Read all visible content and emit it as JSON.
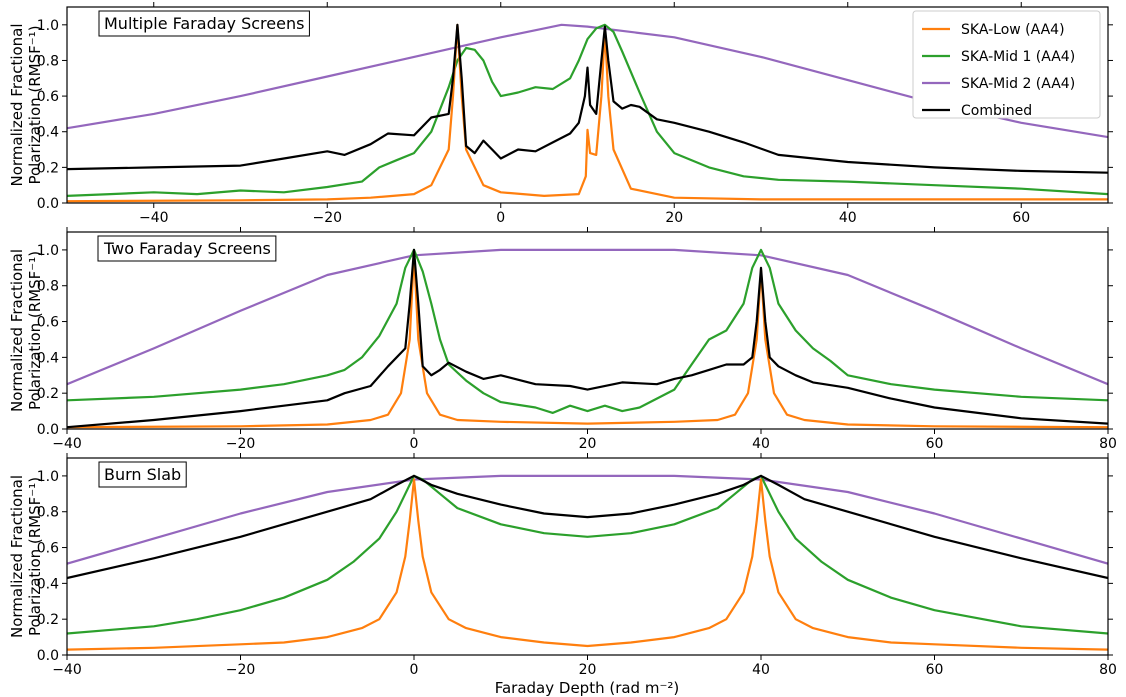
{
  "figure": {
    "ylabel_line1": "Normalized Fractional",
    "ylabel_line2": "Polarization (RMSF⁻¹)",
    "xlabel": "Faraday Depth (rad m⁻²)"
  },
  "legend": [
    {
      "label": "SKA-Low (AA4)",
      "color": "#ff7f0e"
    },
    {
      "label": "SKA-Mid 1 (AA4)",
      "color": "#2ca02c"
    },
    {
      "label": "SKA-Mid 2 (AA4)",
      "color": "#9467bd"
    },
    {
      "label": "Combined",
      "color": "#000000"
    }
  ],
  "chart_data": [
    {
      "type": "line",
      "title": "Multiple Faraday Screens",
      "xlim": [
        -50,
        70
      ],
      "ylim": [
        0,
        1.1
      ],
      "xticks": [
        -40,
        -20,
        0,
        20,
        40,
        60
      ],
      "yticks": [
        0.0,
        0.2,
        0.4,
        0.6,
        0.8,
        1.0
      ],
      "ytick_labels": [
        "0.0",
        "0.2",
        "0.4",
        "0.6",
        "0.8",
        "1.0"
      ],
      "series": [
        {
          "name": "SKA-Mid 2 (AA4)",
          "color": "#9467bd",
          "x": [
            -50,
            -40,
            -30,
            -20,
            -10,
            0,
            5,
            7,
            10,
            20,
            30,
            40,
            50,
            60,
            70
          ],
          "y": [
            0.42,
            0.5,
            0.6,
            0.71,
            0.82,
            0.93,
            0.98,
            1.0,
            0.99,
            0.93,
            0.82,
            0.69,
            0.56,
            0.45,
            0.37
          ]
        },
        {
          "name": "SKA-Mid 1 (AA4)",
          "color": "#2ca02c",
          "x": [
            -50,
            -45,
            -40,
            -35,
            -30,
            -25,
            -20,
            -16,
            -14,
            -12,
            -10,
            -8,
            -6,
            -5,
            -4,
            -3,
            -2,
            -1,
            0,
            2,
            4,
            6,
            8,
            9,
            10,
            11,
            12,
            13,
            14,
            16,
            18,
            20,
            24,
            28,
            32,
            40,
            50,
            60,
            70
          ],
          "y": [
            0.04,
            0.05,
            0.06,
            0.05,
            0.07,
            0.06,
            0.09,
            0.12,
            0.2,
            0.24,
            0.28,
            0.4,
            0.65,
            0.8,
            0.87,
            0.86,
            0.8,
            0.68,
            0.6,
            0.62,
            0.65,
            0.64,
            0.7,
            0.8,
            0.92,
            0.98,
            1.0,
            0.96,
            0.85,
            0.62,
            0.4,
            0.28,
            0.2,
            0.15,
            0.13,
            0.12,
            0.1,
            0.08,
            0.05
          ]
        },
        {
          "name": "SKA-Low (AA4)",
          "color": "#ff7f0e",
          "x": [
            -50,
            -30,
            -20,
            -15,
            -10,
            -8,
            -6,
            -5.5,
            -5,
            -4.5,
            -4,
            -2,
            0,
            5,
            9,
            9.8,
            10,
            10.3,
            11,
            11.6,
            12,
            12.4,
            13,
            15,
            20,
            30,
            50,
            70
          ],
          "y": [
            0.01,
            0.015,
            0.02,
            0.03,
            0.05,
            0.1,
            0.3,
            0.6,
            1.0,
            0.6,
            0.3,
            0.1,
            0.06,
            0.04,
            0.05,
            0.15,
            0.41,
            0.28,
            0.27,
            0.6,
            0.97,
            0.6,
            0.3,
            0.08,
            0.03,
            0.02,
            0.02,
            0.02
          ]
        },
        {
          "name": "Combined",
          "color": "#000000",
          "x": [
            -50,
            -40,
            -30,
            -25,
            -20,
            -18,
            -15,
            -13,
            -10,
            -8,
            -6,
            -5.5,
            -5,
            -4.5,
            -4,
            -3,
            -2,
            -1,
            0,
            2,
            4,
            6,
            8,
            9,
            9.7,
            10,
            10.3,
            11,
            11.6,
            12,
            12.4,
            13,
            14,
            15,
            16,
            18,
            20,
            24,
            28,
            32,
            40,
            50,
            60,
            70
          ],
          "y": [
            0.19,
            0.2,
            0.21,
            0.25,
            0.29,
            0.27,
            0.33,
            0.39,
            0.38,
            0.48,
            0.5,
            0.7,
            1.0,
            0.7,
            0.32,
            0.28,
            0.35,
            0.3,
            0.25,
            0.3,
            0.29,
            0.34,
            0.39,
            0.45,
            0.6,
            0.76,
            0.55,
            0.5,
            0.8,
            0.99,
            0.8,
            0.57,
            0.53,
            0.55,
            0.54,
            0.47,
            0.45,
            0.4,
            0.34,
            0.27,
            0.23,
            0.2,
            0.18,
            0.17
          ]
        }
      ]
    },
    {
      "type": "line",
      "title": "Two Faraday Screens",
      "xlim": [
        -40,
        80
      ],
      "ylim": [
        0,
        1.1
      ],
      "xticks": [
        -40,
        -20,
        0,
        20,
        40,
        60,
        80
      ],
      "yticks": [
        0.0,
        0.2,
        0.4,
        0.6,
        0.8,
        1.0
      ],
      "ytick_labels": [
        "0.0",
        "0.2",
        "0.4",
        "0.6",
        "0.8",
        "1.0"
      ],
      "series": [
        {
          "name": "SKA-Mid 2 (AA4)",
          "color": "#9467bd",
          "x": [
            -40,
            -30,
            -20,
            -10,
            0,
            10,
            20,
            30,
            40,
            50,
            60,
            70,
            80
          ],
          "y": [
            0.25,
            0.45,
            0.66,
            0.86,
            0.97,
            1.0,
            1.0,
            1.0,
            0.97,
            0.86,
            0.66,
            0.45,
            0.25
          ]
        },
        {
          "name": "SKA-Mid 1 (AA4)",
          "color": "#2ca02c",
          "x": [
            -40,
            -30,
            -20,
            -15,
            -10,
            -8,
            -6,
            -4,
            -2,
            -1,
            0,
            1,
            2,
            3,
            4,
            6,
            8,
            10,
            14,
            16,
            18,
            20,
            22,
            24,
            26,
            30,
            32,
            34,
            36,
            38,
            39,
            40,
            41,
            42,
            44,
            46,
            48,
            50,
            55,
            60,
            70,
            80
          ],
          "y": [
            0.16,
            0.18,
            0.22,
            0.25,
            0.3,
            0.33,
            0.4,
            0.52,
            0.7,
            0.9,
            1.0,
            0.88,
            0.7,
            0.5,
            0.36,
            0.27,
            0.2,
            0.15,
            0.12,
            0.09,
            0.13,
            0.1,
            0.13,
            0.1,
            0.12,
            0.22,
            0.36,
            0.5,
            0.55,
            0.7,
            0.9,
            1.0,
            0.9,
            0.7,
            0.55,
            0.45,
            0.38,
            0.3,
            0.25,
            0.22,
            0.18,
            0.16
          ]
        },
        {
          "name": "SKA-Low (AA4)",
          "color": "#ff7f0e",
          "x": [
            -40,
            -20,
            -10,
            -5,
            -3,
            -1.5,
            -0.5,
            0,
            0.5,
            1.5,
            3,
            5,
            10,
            20,
            30,
            35,
            37,
            38.5,
            39.5,
            40,
            40.5,
            41.5,
            43,
            45,
            50,
            60,
            80
          ],
          "y": [
            0.01,
            0.015,
            0.025,
            0.05,
            0.08,
            0.2,
            0.5,
            0.98,
            0.5,
            0.2,
            0.08,
            0.05,
            0.04,
            0.03,
            0.04,
            0.05,
            0.08,
            0.2,
            0.5,
            0.89,
            0.5,
            0.2,
            0.08,
            0.05,
            0.025,
            0.015,
            0.01
          ]
        },
        {
          "name": "Combined",
          "color": "#000000",
          "x": [
            -40,
            -30,
            -20,
            -15,
            -10,
            -8,
            -5,
            -3,
            -1,
            -0.5,
            0,
            0.5,
            1,
            2,
            3,
            4,
            6,
            8,
            10,
            14,
            18,
            20,
            24,
            28,
            30,
            32,
            34,
            36,
            38,
            39,
            39.5,
            40,
            40.5,
            41,
            42,
            44,
            46,
            50,
            55,
            60,
            70,
            80
          ],
          "y": [
            0.01,
            0.05,
            0.1,
            0.13,
            0.16,
            0.2,
            0.24,
            0.35,
            0.45,
            0.7,
            1.0,
            0.7,
            0.35,
            0.3,
            0.33,
            0.37,
            0.32,
            0.28,
            0.3,
            0.25,
            0.24,
            0.22,
            0.26,
            0.25,
            0.28,
            0.3,
            0.33,
            0.36,
            0.36,
            0.4,
            0.6,
            0.9,
            0.6,
            0.4,
            0.35,
            0.3,
            0.26,
            0.23,
            0.17,
            0.12,
            0.06,
            0.03
          ]
        }
      ]
    },
    {
      "type": "line",
      "title": "Burn Slab",
      "xlim": [
        -40,
        80
      ],
      "ylim": [
        0,
        1.1
      ],
      "xticks": [
        -40,
        -20,
        0,
        20,
        40,
        60,
        80
      ],
      "yticks": [
        0.0,
        0.2,
        0.4,
        0.6,
        0.8,
        1.0
      ],
      "ytick_labels": [
        "0.0",
        "0.2",
        "0.4",
        "0.6",
        "0.8",
        "1.0"
      ],
      "series": [
        {
          "name": "SKA-Mid 2 (AA4)",
          "color": "#9467bd",
          "x": [
            -40,
            -30,
            -20,
            -10,
            0,
            10,
            20,
            30,
            40,
            50,
            60,
            70,
            80
          ],
          "y": [
            0.51,
            0.65,
            0.79,
            0.91,
            0.98,
            1.0,
            1.0,
            1.0,
            0.98,
            0.91,
            0.79,
            0.65,
            0.51
          ]
        },
        {
          "name": "SKA-Mid 1 (AA4)",
          "color": "#2ca02c",
          "x": [
            -40,
            -30,
            -25,
            -20,
            -15,
            -10,
            -7,
            -4,
            -2,
            -1,
            0,
            1,
            3,
            5,
            10,
            15,
            20,
            25,
            30,
            35,
            37,
            39,
            40,
            41,
            42,
            44,
            47,
            50,
            55,
            60,
            70,
            80
          ],
          "y": [
            0.12,
            0.16,
            0.2,
            0.25,
            0.32,
            0.42,
            0.52,
            0.65,
            0.8,
            0.9,
            1.0,
            0.98,
            0.9,
            0.82,
            0.73,
            0.68,
            0.66,
            0.68,
            0.73,
            0.82,
            0.9,
            0.98,
            1.0,
            0.9,
            0.8,
            0.65,
            0.52,
            0.42,
            0.32,
            0.25,
            0.16,
            0.12
          ]
        },
        {
          "name": "Combined",
          "color": "#000000",
          "x": [
            -40,
            -30,
            -20,
            -10,
            -5,
            -2,
            0,
            2,
            5,
            10,
            15,
            20,
            25,
            30,
            35,
            38,
            40,
            42,
            45,
            50,
            60,
            70,
            80
          ],
          "y": [
            0.43,
            0.54,
            0.66,
            0.8,
            0.87,
            0.95,
            1.0,
            0.95,
            0.9,
            0.84,
            0.79,
            0.77,
            0.79,
            0.84,
            0.9,
            0.95,
            1.0,
            0.95,
            0.87,
            0.8,
            0.66,
            0.54,
            0.43
          ]
        },
        {
          "name": "SKA-Low (AA4)",
          "color": "#ff7f0e",
          "x": [
            -40,
            -30,
            -20,
            -15,
            -10,
            -6,
            -4,
            -2,
            -1,
            -0.5,
            0,
            0.5,
            1,
            2,
            4,
            6,
            10,
            15,
            20,
            25,
            30,
            34,
            36,
            38,
            39,
            39.5,
            40,
            40.5,
            41,
            42,
            44,
            46,
            50,
            55,
            60,
            70,
            80
          ],
          "y": [
            0.03,
            0.04,
            0.06,
            0.07,
            0.1,
            0.15,
            0.2,
            0.35,
            0.55,
            0.75,
            0.98,
            0.75,
            0.55,
            0.35,
            0.2,
            0.15,
            0.1,
            0.07,
            0.05,
            0.07,
            0.1,
            0.15,
            0.2,
            0.35,
            0.55,
            0.75,
            0.98,
            0.75,
            0.55,
            0.35,
            0.2,
            0.15,
            0.1,
            0.07,
            0.06,
            0.04,
            0.03
          ]
        }
      ]
    }
  ]
}
